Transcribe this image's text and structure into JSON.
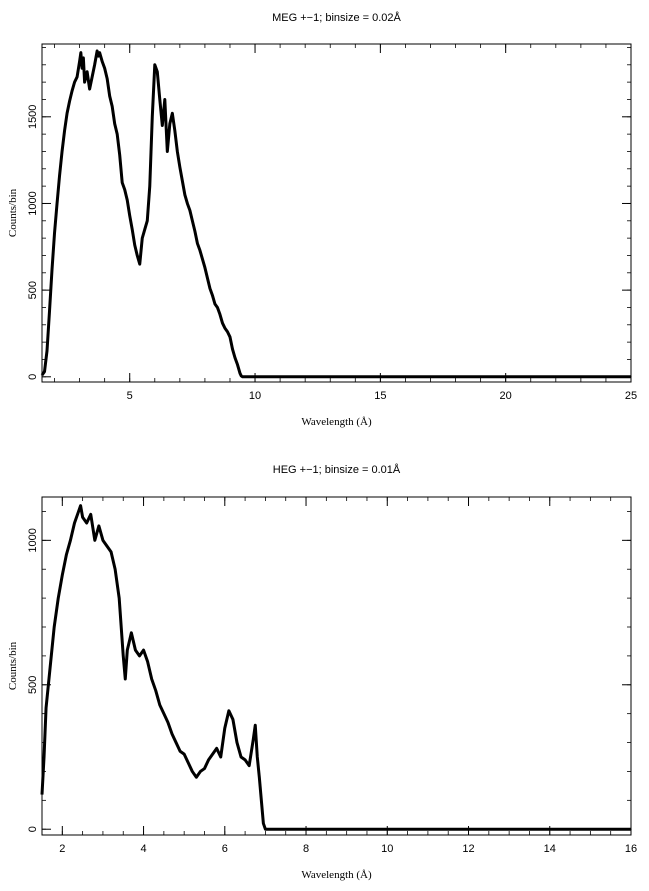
{
  "chart_data": [
    {
      "type": "line",
      "title": "MEG +−1; binsize = 0.02Å",
      "xlabel": "Wavelength (Å)",
      "ylabel": "Counts/bin",
      "xlim": [
        1.5,
        25
      ],
      "ylim": [
        -30,
        1920
      ],
      "xticks_major": [
        5,
        10,
        15,
        20,
        25
      ],
      "xticks_minor_step": 1,
      "yticks_major": [
        0,
        500,
        1000,
        1500
      ],
      "yticks_minor_step": 100,
      "grid": false,
      "series": [
        {
          "x": [
            1.5,
            1.6,
            1.7,
            1.8,
            1.9,
            2.0,
            2.1,
            2.2,
            2.3,
            2.4,
            2.5,
            2.6,
            2.7,
            2.8,
            2.9,
            3.0,
            3.05,
            3.1,
            3.15,
            3.2,
            3.3,
            3.4,
            3.5,
            3.6,
            3.7,
            3.75,
            3.8,
            3.9,
            4.0,
            4.1,
            4.2,
            4.3,
            4.4,
            4.5,
            4.6,
            4.7,
            4.8,
            4.9,
            5.0,
            5.1,
            5.2,
            5.3,
            5.4,
            5.5,
            5.6,
            5.7,
            5.8,
            5.9,
            6.0,
            6.1,
            6.2,
            6.3,
            6.4,
            6.5,
            6.6,
            6.7,
            6.8,
            6.9,
            7.0,
            7.1,
            7.2,
            7.3,
            7.4,
            7.5,
            7.6,
            7.7,
            7.8,
            7.9,
            8.0,
            8.1,
            8.2,
            8.3,
            8.4,
            8.5,
            8.6,
            8.7,
            8.8,
            8.9,
            9.0,
            9.1,
            9.2,
            9.3,
            9.4,
            9.45,
            9.5,
            10,
            12,
            15,
            18,
            20,
            22,
            25
          ],
          "y": [
            10,
            30,
            150,
            380,
            620,
            830,
            1000,
            1160,
            1300,
            1420,
            1520,
            1590,
            1650,
            1700,
            1730,
            1820,
            1870,
            1780,
            1840,
            1700,
            1760,
            1660,
            1730,
            1800,
            1880,
            1850,
            1870,
            1820,
            1780,
            1720,
            1620,
            1560,
            1460,
            1400,
            1280,
            1120,
            1080,
            1020,
            930,
            850,
            760,
            700,
            650,
            800,
            850,
            900,
            1100,
            1500,
            1800,
            1760,
            1600,
            1450,
            1600,
            1300,
            1460,
            1520,
            1420,
            1300,
            1210,
            1130,
            1050,
            1000,
            960,
            900,
            840,
            770,
            730,
            680,
            630,
            570,
            510,
            470,
            420,
            400,
            360,
            310,
            280,
            260,
            230,
            160,
            110,
            70,
            20,
            5,
            0,
            0,
            0,
            0,
            0,
            0,
            0,
            0
          ]
        }
      ]
    },
    {
      "type": "line",
      "title": "HEG +−1; binsize = 0.01Å",
      "xlabel": "Wavelength (Å)",
      "ylabel": "Counts/bin",
      "xlim": [
        1.5,
        16
      ],
      "ylim": [
        -20,
        1150
      ],
      "xticks_major": [
        2,
        4,
        6,
        8,
        10,
        12,
        14,
        16
      ],
      "xticks_minor_step": 0.5,
      "yticks_major": [
        0,
        500,
        1000
      ],
      "yticks_minor_step": 100,
      "grid": false,
      "series": [
        {
          "x": [
            1.5,
            1.55,
            1.6,
            1.7,
            1.8,
            1.9,
            2.0,
            2.1,
            2.2,
            2.3,
            2.4,
            2.45,
            2.5,
            2.6,
            2.7,
            2.8,
            2.9,
            3.0,
            3.1,
            3.2,
            3.3,
            3.4,
            3.5,
            3.55,
            3.6,
            3.7,
            3.8,
            3.9,
            4.0,
            4.1,
            4.2,
            4.3,
            4.4,
            4.5,
            4.6,
            4.7,
            4.8,
            4.9,
            5.0,
            5.1,
            5.2,
            5.3,
            5.4,
            5.5,
            5.6,
            5.7,
            5.8,
            5.9,
            6.0,
            6.1,
            6.2,
            6.3,
            6.4,
            6.5,
            6.6,
            6.7,
            6.75,
            6.8,
            6.85,
            6.9,
            6.95,
            7.0,
            8,
            10,
            12,
            14,
            16
          ],
          "y": [
            120,
            250,
            420,
            560,
            700,
            800,
            880,
            950,
            1000,
            1060,
            1100,
            1120,
            1080,
            1060,
            1090,
            1000,
            1050,
            1000,
            980,
            960,
            900,
            800,
            600,
            520,
            620,
            680,
            620,
            600,
            620,
            580,
            520,
            480,
            430,
            400,
            370,
            330,
            300,
            270,
            260,
            230,
            200,
            180,
            200,
            210,
            240,
            260,
            280,
            250,
            350,
            410,
            380,
            300,
            250,
            240,
            220,
            310,
            360,
            250,
            180,
            100,
            20,
            0,
            0,
            0,
            0,
            0,
            0
          ]
        }
      ]
    }
  ]
}
